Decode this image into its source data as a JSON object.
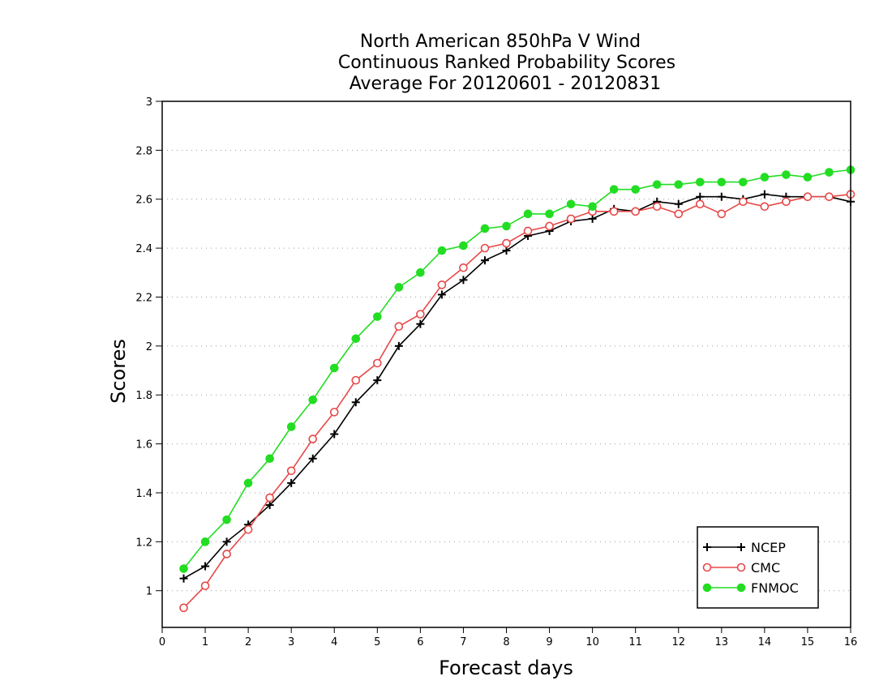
{
  "chart_data": {
    "type": "line",
    "title_lines": [
      "North American 850hPa V Wind",
      "Continuous Ranked Probability Scores",
      "Average For 20120601 - 20120831"
    ],
    "xlabel": "Forecast days",
    "ylabel": "Scores",
    "xlim": [
      0,
      16
    ],
    "ylim": [
      0.85,
      3.0
    ],
    "xticks": [
      0,
      1,
      2,
      3,
      4,
      5,
      6,
      7,
      8,
      9,
      10,
      11,
      12,
      13,
      14,
      15,
      16
    ],
    "yticks": [
      1,
      1.2,
      1.4,
      1.6,
      1.8,
      2,
      2.2,
      2.4,
      2.6,
      2.8,
      3
    ],
    "grid": "horizontal-dotted",
    "legend_position": "bottom-right",
    "x": [
      0.5,
      1,
      1.5,
      2,
      2.5,
      3,
      3.5,
      4,
      4.5,
      5,
      5.5,
      6,
      6.5,
      7,
      7.5,
      8,
      8.5,
      9,
      9.5,
      10,
      10.5,
      11,
      11.5,
      12,
      12.5,
      13,
      13.5,
      14,
      14.5,
      15,
      15.5,
      16
    ],
    "series": [
      {
        "name": "NCEP",
        "color": "#000000",
        "marker": "plus",
        "values": [
          1.05,
          1.1,
          1.2,
          1.27,
          1.35,
          1.44,
          1.54,
          1.64,
          1.77,
          1.86,
          2.0,
          2.09,
          2.21,
          2.27,
          2.35,
          2.39,
          2.45,
          2.47,
          2.51,
          2.52,
          2.56,
          2.55,
          2.59,
          2.58,
          2.61,
          2.61,
          2.6,
          2.62,
          2.61,
          2.61,
          2.61,
          2.59
        ]
      },
      {
        "name": "CMC",
        "color": "#e84848",
        "marker": "open-circle",
        "values": [
          0.93,
          1.02,
          1.15,
          1.25,
          1.38,
          1.49,
          1.62,
          1.73,
          1.86,
          1.93,
          2.08,
          2.13,
          2.25,
          2.32,
          2.4,
          2.42,
          2.47,
          2.49,
          2.52,
          2.55,
          2.55,
          2.55,
          2.57,
          2.54,
          2.58,
          2.54,
          2.59,
          2.57,
          2.59,
          2.61,
          2.61,
          2.62
        ]
      },
      {
        "name": "FNMOC",
        "color": "#22dd22",
        "marker": "filled-circle",
        "values": [
          1.09,
          1.2,
          1.29,
          1.44,
          1.54,
          1.67,
          1.78,
          1.91,
          2.03,
          2.12,
          2.24,
          2.3,
          2.39,
          2.41,
          2.48,
          2.49,
          2.54,
          2.54,
          2.58,
          2.57,
          2.64,
          2.64,
          2.66,
          2.66,
          2.67,
          2.67,
          2.67,
          2.69,
          2.7,
          2.69,
          2.71,
          2.72
        ]
      }
    ]
  }
}
